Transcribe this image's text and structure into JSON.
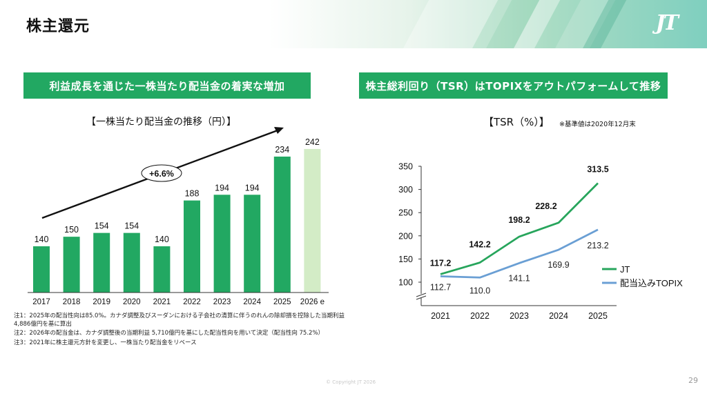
{
  "header": {
    "title": "株主還元",
    "logo": "JT"
  },
  "left_panel": {
    "banner": "利益成長を通じた一株当たり配当金の着実な増加",
    "subtitle": "【一株当たり配当金の推移（円）】",
    "growth_label": "+6.6%"
  },
  "right_panel": {
    "banner": "株主総利回り（TSR）はTOPIXをアウトパフォームして推移",
    "subtitle": "【TSR（%）】",
    "note": "※基準値は2020年12月末"
  },
  "notes": [
    "注1：2025年の配当性向は85.0%。カナダ調整及びスーダンにおける子会社の清算に伴うのれんの除却損を控除した当期利益 4,886億円を基に算出",
    "注2：2026年の配当金は、カナダ調整後の当期利益 5,710億円を基にした配当性向を用いて決定（配当性向 75.2%）",
    "注3：2021年に株主還元方針を変更し、一株当たり配当金をリベース"
  ],
  "footer": {
    "copyright": "© Copyright JT 2026",
    "page_number": "29"
  },
  "colors": {
    "brand_green": "#22a862",
    "bar_green": "#22a862",
    "forecast_bar": "#d3ecc6",
    "jt_line": "#27a55c",
    "topix_line": "#6a9fd4"
  },
  "chart_data": [
    {
      "type": "bar",
      "title": "【一株当たり配当金の推移（円）】",
      "xlabel": "",
      "ylabel": "円",
      "categories": [
        "2017",
        "2018",
        "2019",
        "2020",
        "2021",
        "2022",
        "2023",
        "2024",
        "2025",
        "2026 e"
      ],
      "values": [
        140,
        150,
        154,
        154,
        140,
        188,
        194,
        194,
        234,
        242
      ],
      "forecast": [
        false,
        false,
        false,
        false,
        false,
        false,
        false,
        false,
        false,
        true
      ],
      "annotation": "+6.6%",
      "grid": false
    },
    {
      "type": "line",
      "title": "【TSR（%）】",
      "note": "※基準値は2020年12月末",
      "x": [
        "2021",
        "2022",
        "2023",
        "2024",
        "2025"
      ],
      "series": [
        {
          "name": "JT",
          "values": [
            117.2,
            142.2,
            198.2,
            228.2,
            313.5
          ],
          "color": "#27a55c"
        },
        {
          "name": "配当込みTOPIX",
          "values": [
            112.7,
            110.0,
            141.1,
            169.9,
            213.2
          ],
          "color": "#6a9fd4"
        }
      ],
      "yticks": [
        100,
        150,
        200,
        250,
        300,
        350
      ],
      "ylim": [
        100,
        350
      ],
      "axis_break": true,
      "legend": "right",
      "grid": false
    }
  ]
}
